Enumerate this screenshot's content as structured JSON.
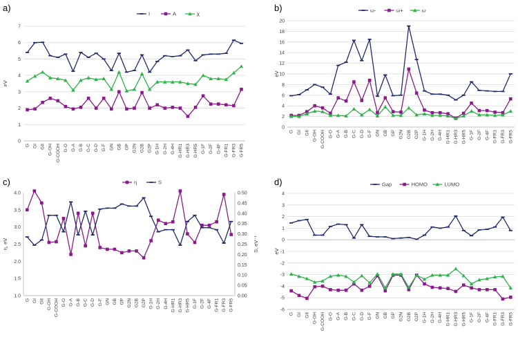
{
  "categories": [
    "G",
    "GI",
    "GII",
    "G-OH",
    "G-COOH",
    "G-O",
    "G-A",
    "G-B",
    "G-C",
    "G-D",
    "G-F",
    "GN",
    "GB",
    "GP",
    "G2N",
    "G2B",
    "G2P",
    "G-1H",
    "G-2H",
    "G-4H",
    "G-HR1",
    "G-HR3",
    "G-HR5",
    "G-1F",
    "G-2F",
    "G-4F",
    "G-FR1",
    "G-FR3",
    "G-FR5"
  ],
  "colors": {
    "navy": "#1f2a6b",
    "purple": "#8b1a8b",
    "green": "#2db34a",
    "grid": "#d9d9d9",
    "axis": "#bfbfbf"
  },
  "chart_data": [
    {
      "type": "line",
      "panel_label": "a)",
      "ylabel": "eV",
      "ylim": [
        0,
        7
      ],
      "yticks": [
        0,
        1,
        2,
        3,
        4,
        5,
        6,
        7
      ],
      "grid": true,
      "legend_position": "top-right",
      "series": [
        {
          "name": "I",
          "color": "#1f2a6b",
          "marker": "dash",
          "values": [
            5.4,
            6.0,
            6.02,
            5.2,
            5.1,
            5.3,
            4.25,
            5.4,
            5.1,
            5.35,
            5.0,
            4.3,
            5.35,
            4.2,
            4.3,
            5.25,
            4.2,
            4.85,
            5.2,
            5.15,
            5.2,
            5.55,
            4.9,
            5.25,
            5.3,
            5.3,
            5.35,
            6.15,
            5.95
          ]
        },
        {
          "name": "A",
          "color": "#8b1a8b",
          "marker": "square",
          "values": [
            1.9,
            1.95,
            2.35,
            2.6,
            2.45,
            2.1,
            1.95,
            2.05,
            2.6,
            2.0,
            2.6,
            1.95,
            3.0,
            1.95,
            2.0,
            2.95,
            2.0,
            2.2,
            2.0,
            2.05,
            2.0,
            1.5,
            2.05,
            2.75,
            2.25,
            2.25,
            2.2,
            2.15,
            3.15
          ]
        },
        {
          "name": "χ",
          "color": "#2db34a",
          "marker": "triangle",
          "values": [
            3.65,
            3.95,
            4.2,
            3.85,
            3.8,
            3.7,
            3.1,
            3.7,
            3.85,
            3.75,
            3.8,
            3.15,
            4.2,
            3.05,
            3.15,
            4.1,
            3.15,
            3.6,
            3.6,
            3.6,
            3.6,
            3.5,
            3.45,
            4.0,
            3.8,
            3.8,
            3.75,
            4.15,
            4.55
          ]
        }
      ]
    },
    {
      "type": "line",
      "panel_label": "b)",
      "ylabel": "eV",
      "ylim": [
        0,
        20
      ],
      "yticks": [
        0,
        2,
        4,
        6,
        8,
        10,
        12,
        14,
        16,
        18,
        20
      ],
      "grid": true,
      "legend_position": "top-center",
      "series": [
        {
          "name": "ω-",
          "color": "#1f2a6b",
          "marker": "dash",
          "values": [
            5.9,
            6.1,
            7.0,
            8.0,
            7.5,
            6.2,
            11.6,
            12.2,
            16.3,
            12.5,
            16.5,
            5.8,
            9.8,
            5.9,
            6.0,
            19.0,
            12.7,
            6.8,
            6.2,
            6.2,
            6.0,
            5.1,
            6.0,
            8.5,
            6.9,
            6.8,
            6.7,
            6.7,
            10.0
          ]
        },
        {
          "name": "ω+",
          "color": "#8b1a8b",
          "marker": "square",
          "values": [
            2.2,
            2.2,
            2.9,
            4.0,
            3.6,
            2.6,
            5.5,
            4.9,
            8.5,
            5.0,
            8.8,
            2.7,
            5.5,
            2.9,
            2.8,
            10.9,
            6.4,
            3.2,
            2.7,
            2.7,
            2.5,
            1.7,
            2.6,
            4.5,
            3.1,
            3.1,
            2.8,
            2.7,
            5.3
          ]
        },
        {
          "name": "ω",
          "color": "#2db34a",
          "marker": "triangle",
          "values": [
            2.0,
            2.0,
            2.5,
            3.0,
            2.9,
            2.2,
            2.2,
            2.1,
            3.4,
            2.3,
            3.3,
            2.1,
            3.8,
            2.2,
            2.2,
            3.6,
            2.3,
            2.5,
            2.2,
            2.2,
            2.1,
            1.6,
            2.1,
            3.0,
            2.3,
            2.3,
            2.2,
            2.3,
            3.0
          ]
        }
      ]
    },
    {
      "type": "line",
      "panel_label": "c)",
      "ylabel": "η, eV",
      "y2label": "S, eV⁻¹",
      "ylim": [
        1.0,
        4.0
      ],
      "yticks": [
        1.0,
        1.5,
        2.0,
        2.5,
        3.0,
        3.5,
        4.0
      ],
      "ytick_labels": [
        "1.0",
        "1.5",
        "2.0",
        "2.5",
        "3.0",
        "3.5",
        "4.0"
      ],
      "y2lim": [
        0.0,
        0.5
      ],
      "y2ticks": [
        0.0,
        0.05,
        0.1,
        0.15,
        0.2,
        0.25,
        0.3,
        0.35,
        0.4,
        0.45,
        0.5
      ],
      "y2tick_labels": [
        "0.00",
        "0.05",
        "0.10",
        "0.15",
        "0.20",
        "0.25",
        "0.30",
        "0.35",
        "0.40",
        "0.45",
        "0.50"
      ],
      "grid": false,
      "legend_position": "top-center",
      "series": [
        {
          "name": "η",
          "color": "#8b1a8b",
          "marker": "square",
          "axis": "left",
          "values": [
            3.5,
            4.05,
            3.7,
            2.55,
            2.57,
            3.25,
            2.2,
            3.4,
            2.45,
            3.4,
            2.4,
            2.35,
            2.35,
            2.25,
            2.3,
            2.3,
            2.1,
            2.6,
            3.2,
            3.1,
            3.15,
            4.05,
            2.8,
            2.55,
            3.05,
            3.05,
            3.15,
            3.95,
            2.78
          ]
        },
        {
          "name": "S",
          "color": "#1f2a6b",
          "marker": "dash",
          "axis": "right",
          "values": [
            0.285,
            0.245,
            0.27,
            0.39,
            0.39,
            0.31,
            0.455,
            0.295,
            0.41,
            0.295,
            0.42,
            0.425,
            0.425,
            0.445,
            0.435,
            0.435,
            0.475,
            0.385,
            0.31,
            0.32,
            0.32,
            0.245,
            0.36,
            0.39,
            0.33,
            0.33,
            0.32,
            0.255,
            0.36
          ]
        }
      ]
    },
    {
      "type": "line",
      "panel_label": "d)",
      "ylabel": "eV",
      "ylim": [
        -6,
        4
      ],
      "yticks": [
        -6,
        -5,
        -4,
        -3,
        -2,
        -1,
        0,
        1,
        2,
        3,
        4
      ],
      "grid": true,
      "legend_position": "top-center",
      "series": [
        {
          "name": "Gap",
          "color": "#1f2a6b",
          "marker": "dash",
          "values": [
            1.45,
            1.65,
            1.75,
            0.4,
            0.4,
            1.15,
            1.35,
            1.3,
            0.15,
            1.3,
            0.3,
            0.25,
            0.25,
            0.1,
            0.15,
            0.2,
            0.05,
            0.4,
            1.1,
            1.0,
            1.1,
            2.05,
            0.8,
            0.35,
            0.85,
            0.9,
            1.1,
            1.95,
            0.8
          ]
        },
        {
          "name": "HOMO",
          "color": "#8b1a8b",
          "marker": "square",
          "values": [
            -4.4,
            -4.8,
            -5.05,
            -4.05,
            -4.0,
            -4.3,
            -4.35,
            -4.35,
            -3.8,
            -4.35,
            -4.0,
            -3.1,
            -4.4,
            -3.05,
            -3.05,
            -4.3,
            -3.05,
            -3.8,
            -4.1,
            -4.15,
            -4.2,
            -4.45,
            -3.9,
            -4.15,
            -4.3,
            -4.3,
            -4.3,
            -5.1,
            -4.95
          ]
        },
        {
          "name": "LUMO",
          "color": "#2db34a",
          "marker": "triangle",
          "values": [
            -2.95,
            -3.15,
            -3.35,
            -3.65,
            -3.55,
            -3.15,
            -3.05,
            -3.15,
            -3.65,
            -3.1,
            -3.7,
            -2.95,
            -4.15,
            -2.95,
            -2.95,
            -4.1,
            -3.05,
            -3.4,
            -3.05,
            -3.05,
            -3.05,
            -2.5,
            -3.1,
            -3.8,
            -3.45,
            -3.35,
            -3.2,
            -3.15,
            -4.15
          ]
        }
      ]
    }
  ]
}
